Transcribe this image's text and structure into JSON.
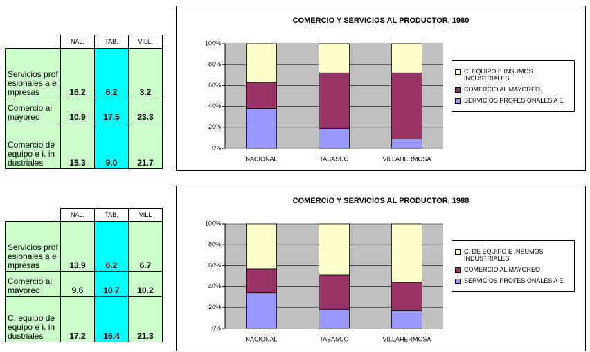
{
  "tables": [
    {
      "columns": [
        "NAL.",
        "TAB.",
        "VILL."
      ],
      "rows": [
        {
          "label": "Servicios profesionales a empresas",
          "values": [
            "16.2",
            "6.2",
            "3.2"
          ]
        },
        {
          "label": "Comercio al mayoreo",
          "values": [
            "10.9",
            "17.5",
            "23.3"
          ]
        },
        {
          "label": "Comercio de equipo e i. industriales",
          "values": [
            "15.3",
            "9.0",
            "21.7"
          ]
        }
      ]
    },
    {
      "columns": [
        "NAL.",
        "TAB.",
        "VILL"
      ],
      "rows": [
        {
          "label": "Servicios profesionales a empresas",
          "values": [
            "13.9",
            "6.2",
            "6.7"
          ]
        },
        {
          "label": "Comercio al mayoreo",
          "values": [
            "9.6",
            "10.7",
            "10.2"
          ]
        },
        {
          "label": "C. equipo de equipo e i. industriales",
          "values": [
            "17.2",
            "16.4",
            "21.3"
          ]
        }
      ]
    }
  ],
  "chart_data": [
    {
      "type": "bar",
      "stacked": true,
      "title": "COMERCIO Y SERVICIOS AL PRODUCTOR, 1980",
      "categories": [
        "NACIONAL",
        "TABASCO",
        "VILLAHERMOSA"
      ],
      "series": [
        {
          "name": "SERVICIOS PROFESIONALES A E.",
          "color": "#9999ff",
          "values": [
            38,
            19,
            9
          ]
        },
        {
          "name": "COMERCIO AL MAYOREO",
          "color": "#993366",
          "values": [
            25,
            53,
            63
          ]
        },
        {
          "name": "C. EQUIPO E INSUMOS INDUSTRIALES",
          "color": "#ffffcc",
          "values": [
            37,
            28,
            28
          ]
        }
      ],
      "ylim": [
        0,
        100
      ],
      "yticks": [
        {
          "value": 0,
          "label": "0%"
        },
        {
          "value": 20,
          "label": "20%"
        },
        {
          "value": 40,
          "label": "40%"
        },
        {
          "value": 60,
          "label": "60%"
        },
        {
          "value": 80,
          "label": "80%"
        },
        {
          "value": 100,
          "label": "100%"
        }
      ],
      "legend": "right"
    },
    {
      "type": "bar",
      "stacked": true,
      "title": "COMERCIO Y SERVICIOS AL PRODUCTOR, 1988",
      "categories": [
        "NACIONAL",
        "TABASCO",
        "VILLAHERMOSA"
      ],
      "series": [
        {
          "name": "SERVICIOS PROFESIONALES A E.",
          "color": "#9999ff",
          "values": [
            34,
            18,
            17
          ]
        },
        {
          "name": "COMERCIO AL MAYOREO",
          "color": "#993366",
          "values": [
            23,
            33,
            27
          ]
        },
        {
          "name": "C. DE EQUIPO E INSUMOS INDUSTRIALES",
          "color": "#ffffcc",
          "values": [
            43,
            49,
            56
          ]
        }
      ],
      "ylim": [
        0,
        100
      ],
      "yticks": [
        {
          "value": 0,
          "label": "0%"
        },
        {
          "value": 20,
          "label": "20%"
        },
        {
          "value": 40,
          "label": "40%"
        },
        {
          "value": 60,
          "label": "60%"
        },
        {
          "value": 80,
          "label": "80%"
        },
        {
          "value": 100,
          "label": "100%"
        }
      ],
      "legend": "right"
    }
  ]
}
